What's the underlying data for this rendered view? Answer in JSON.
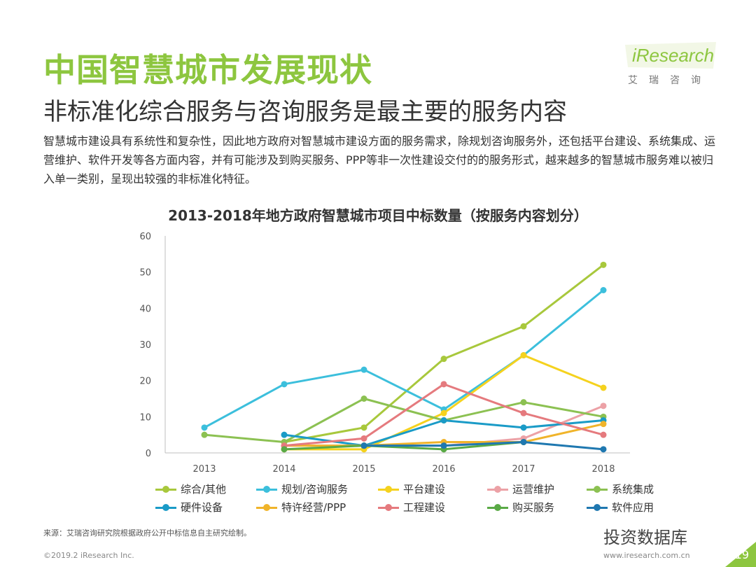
{
  "header": {
    "title": "中国智慧城市发展现状",
    "subtitle": "非标准化综合服务与咨询服务是最主要的服务内容",
    "intro": "智慧城市建设具有系统性和复杂性，因此地方政府对智慧城市建设方面的服务需求，除规划咨询服务外，还包括平台建设、系统集成、运营维护、软件开发等各方面内容，并有可能涉及到购买服务、PPP等非一次性建设交付的的服务形式，越来越多的智慧城市服务难以被归入单一类别，呈现出较强的非标准化特征。"
  },
  "logo": {
    "text": "iResearch",
    "sub": "艾瑞咨询",
    "color": "#8dc63f"
  },
  "chart_data": {
    "type": "line",
    "title": "2013-2018年地方政府智慧城市项目中标数量（按服务内容划分）",
    "categories": [
      "2013",
      "2014",
      "2015",
      "2016",
      "2017",
      "2018"
    ],
    "ylim": [
      0,
      60
    ],
    "yticks": [
      0,
      10,
      20,
      30,
      40,
      50,
      60
    ],
    "grid": false,
    "legend_position": "bottom",
    "series": [
      {
        "name": "综合/其他",
        "color": "#a8c83c",
        "values": [
          null,
          3,
          7,
          26,
          35,
          52
        ]
      },
      {
        "name": "规划/咨询服务",
        "color": "#3cbfdc",
        "values": [
          7,
          19,
          23,
          12,
          27,
          45
        ]
      },
      {
        "name": "平台建设",
        "color": "#f5d21e",
        "values": [
          null,
          1,
          1,
          11,
          27,
          18
        ]
      },
      {
        "name": "运营维护",
        "color": "#eca1a6",
        "values": [
          null,
          2,
          2,
          2,
          4,
          13
        ]
      },
      {
        "name": "系统集成",
        "color": "#8cc152",
        "values": [
          5,
          3,
          15,
          9,
          14,
          10
        ]
      },
      {
        "name": "硬件设备",
        "color": "#1a9bc7",
        "values": [
          null,
          5,
          2,
          9,
          7,
          9
        ]
      },
      {
        "name": "特许经营/PPP",
        "color": "#f0b42a",
        "values": [
          null,
          2,
          2,
          3,
          3,
          8
        ]
      },
      {
        "name": "工程建设",
        "color": "#e57a7e",
        "values": [
          null,
          2,
          4,
          19,
          11,
          5
        ]
      },
      {
        "name": "购买服务",
        "color": "#5aaa46",
        "values": [
          null,
          1,
          2,
          1,
          3,
          null
        ]
      },
      {
        "name": "软件应用",
        "color": "#1f78b0",
        "values": [
          null,
          null,
          2,
          2,
          3,
          1
        ]
      }
    ]
  },
  "footer": {
    "source": "来源：艾瑞咨询研究院根据政府公开中标信息自主研究绘制。",
    "copyright": "©2019.2 iResearch Inc.",
    "url": "www.iresearch.com.cn",
    "watermark": "投资数据库",
    "page": "19",
    "accent": "#8dc63f"
  }
}
